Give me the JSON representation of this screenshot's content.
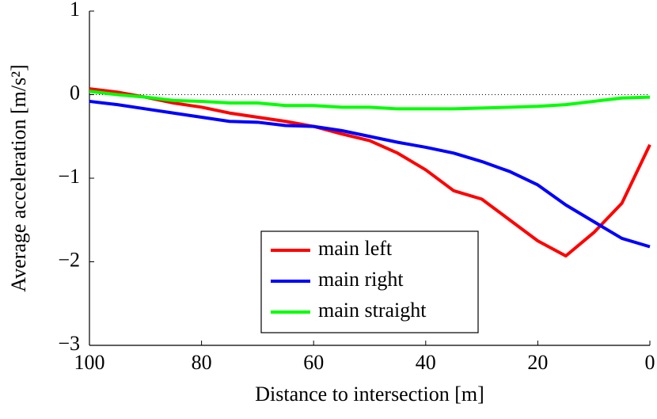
{
  "chart_data": {
    "type": "line",
    "x_label": "Distance to intersection [m]",
    "y_label": "Average acceleration [m/s²]",
    "x": [
      100,
      95,
      90,
      85,
      80,
      75,
      70,
      65,
      60,
      55,
      50,
      45,
      40,
      35,
      30,
      25,
      20,
      15,
      10,
      5,
      0
    ],
    "series": [
      {
        "name": "main left",
        "color": "#ff0000",
        "values": [
          0.07,
          0.03,
          -0.03,
          -0.1,
          -0.15,
          -0.22,
          -0.27,
          -0.32,
          -0.38,
          -0.47,
          -0.55,
          -0.7,
          -0.9,
          -1.15,
          -1.25,
          -1.5,
          -1.75,
          -1.93,
          -1.65,
          -1.3,
          -0.6
        ]
      },
      {
        "name": "main right",
        "color": "#0000ff",
        "values": [
          -0.08,
          -0.12,
          -0.17,
          -0.22,
          -0.27,
          -0.32,
          -0.33,
          -0.37,
          -0.38,
          -0.43,
          -0.5,
          -0.57,
          -0.63,
          -0.7,
          -0.8,
          -0.92,
          -1.08,
          -1.32,
          -1.52,
          -1.72,
          -1.82
        ]
      },
      {
        "name": "main straight",
        "color": "#00ff00",
        "values": [
          0.04,
          0.0,
          -0.03,
          -0.07,
          -0.08,
          -0.1,
          -0.1,
          -0.13,
          -0.13,
          -0.15,
          -0.15,
          -0.17,
          -0.17,
          -0.17,
          -0.16,
          -0.15,
          -0.14,
          -0.12,
          -0.08,
          -0.04,
          -0.03
        ]
      }
    ],
    "xlim": [
      100,
      0
    ],
    "xticks": [
      100,
      80,
      60,
      40,
      20,
      0
    ],
    "ylim": [
      -3,
      1
    ],
    "yticks": [
      {
        "value": -3,
        "label": "−3"
      },
      {
        "value": -2,
        "label": "−2"
      },
      {
        "value": -1,
        "label": "−1"
      },
      0,
      1
    ],
    "hline": 0,
    "legend": "bottom-center"
  }
}
